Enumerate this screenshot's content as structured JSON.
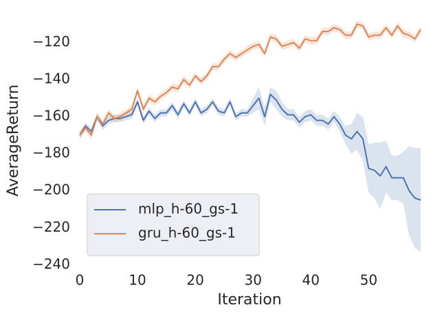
{
  "chart_data": {
    "type": "line",
    "xlabel": "Iteration",
    "ylabel": "AverageReturn",
    "x": [
      0,
      1,
      2,
      3,
      4,
      5,
      6,
      7,
      8,
      9,
      10,
      11,
      12,
      13,
      14,
      15,
      16,
      17,
      18,
      19,
      20,
      21,
      22,
      23,
      24,
      25,
      26,
      27,
      28,
      29,
      30,
      31,
      32,
      33,
      34,
      35,
      36,
      37,
      38,
      39,
      40,
      41,
      42,
      43,
      44,
      45,
      46,
      47,
      48,
      49,
      50,
      51,
      52,
      53,
      54,
      55,
      56,
      57,
      58,
      59
    ],
    "series": [
      {
        "name": "mlp_h-60_gs-1",
        "color": "#4c72b0",
        "values": [
          -170,
          -165,
          -168,
          -160,
          -165,
          -162,
          -161,
          -161,
          -160,
          -159,
          -152,
          -162,
          -157,
          -161,
          -158,
          -158,
          -154,
          -159,
          -153,
          -158,
          -152,
          -158,
          -156,
          -152,
          -157,
          -158,
          -152,
          -160,
          -158,
          -158,
          -154,
          -150,
          -160,
          -148,
          -151,
          -156,
          -159,
          -159,
          -163,
          -160,
          -159,
          -162,
          -162,
          -164,
          -160,
          -164,
          -170,
          -172,
          -168,
          -172,
          -188,
          -189,
          -192,
          -187,
          -193,
          -193,
          -193,
          -200,
          -204,
          -205
        ],
        "lower": [
          -172,
          -167,
          -170,
          -162,
          -167,
          -164,
          -163,
          -163,
          -162,
          -161,
          -154,
          -164,
          -159,
          -163,
          -160,
          -160,
          -156,
          -161,
          -155,
          -160,
          -154,
          -160,
          -158,
          -154,
          -159,
          -160,
          -154,
          -162,
          -160,
          -160,
          -158,
          -156,
          -165,
          -152,
          -156,
          -160,
          -162,
          -162,
          -166,
          -163,
          -162,
          -165,
          -165,
          -167,
          -163,
          -168,
          -175,
          -180,
          -178,
          -184,
          -201,
          -204,
          -210,
          -201,
          -205,
          -205,
          -207,
          -224,
          -231,
          -233
        ],
        "upper": [
          -168,
          -163,
          -166,
          -158,
          -163,
          -160,
          -159,
          -159,
          -158,
          -157,
          -150,
          -160,
          -155,
          -159,
          -156,
          -156,
          -152,
          -157,
          -151,
          -156,
          -150,
          -156,
          -154,
          -150,
          -155,
          -156,
          -150,
          -158,
          -156,
          -156,
          -150,
          -144,
          -155,
          -144,
          -146,
          -152,
          -156,
          -156,
          -160,
          -157,
          -156,
          -159,
          -159,
          -161,
          -157,
          -160,
          -165,
          -164,
          -158,
          -160,
          -175,
          -174,
          -174,
          -173,
          -181,
          -181,
          -179,
          -176,
          -177,
          -177
        ]
      },
      {
        "name": "gru_h-60_gs-1",
        "color": "#dd8452",
        "values": [
          -170,
          -166,
          -170,
          -160,
          -164,
          -158,
          -161,
          -160,
          -158,
          -156,
          -146,
          -156,
          -150,
          -152,
          -149,
          -147,
          -144,
          -145,
          -140,
          -143,
          -138,
          -141,
          -138,
          -133,
          -133,
          -129,
          -126,
          -128,
          -126,
          -124,
          -122,
          -121,
          -126,
          -117,
          -118,
          -122,
          -121,
          -120,
          -123,
          -118,
          -119,
          -119,
          -114,
          -114,
          -112,
          -113,
          -116,
          -116,
          -110,
          -111,
          -117,
          -116,
          -116,
          -112,
          -116,
          -111,
          -115,
          -116,
          -118,
          -113
        ],
        "lower": [
          -172,
          -168,
          -172,
          -162,
          -166,
          -160,
          -163,
          -162,
          -160,
          -158,
          -148,
          -158,
          -152,
          -154,
          -151,
          -149,
          -146,
          -147,
          -142,
          -145,
          -140,
          -143,
          -140,
          -135,
          -135,
          -131,
          -128,
          -130,
          -128,
          -126,
          -124,
          -123,
          -128,
          -119,
          -120,
          -124,
          -123,
          -122,
          -125,
          -120,
          -121,
          -121,
          -116,
          -116,
          -114,
          -115,
          -118,
          -118,
          -112,
          -113,
          -119,
          -118,
          -118,
          -114,
          -118,
          -113,
          -117,
          -118,
          -120,
          -115
        ],
        "upper": [
          -168,
          -164,
          -168,
          -158,
          -162,
          -156,
          -159,
          -158,
          -156,
          -154,
          -144,
          -154,
          -148,
          -150,
          -147,
          -145,
          -142,
          -143,
          -138,
          -141,
          -136,
          -139,
          -136,
          -131,
          -131,
          -127,
          -124,
          -126,
          -124,
          -122,
          -120,
          -119,
          -124,
          -115,
          -116,
          -120,
          -119,
          -118,
          -121,
          -116,
          -117,
          -117,
          -112,
          -112,
          -110,
          -111,
          -114,
          -114,
          -108,
          -109,
          -115,
          -114,
          -114,
          -110,
          -114,
          -109,
          -113,
          -114,
          -116,
          -111
        ]
      }
    ],
    "xlim": [
      0,
      59
    ],
    "xticks": [
      0,
      10,
      20,
      30,
      40,
      50
    ],
    "ylim": [
      -241,
      -107
    ],
    "yticks": [
      {
        "value": -240,
        "label": "−240"
      },
      {
        "value": -220,
        "label": "−220"
      },
      {
        "value": -200,
        "label": "−200"
      },
      {
        "value": -180,
        "label": "−180"
      },
      {
        "value": -160,
        "label": "−160"
      },
      {
        "value": -140,
        "label": "−140"
      },
      {
        "value": -120,
        "label": "−120"
      }
    ],
    "grid": false,
    "legend": "lower left"
  }
}
